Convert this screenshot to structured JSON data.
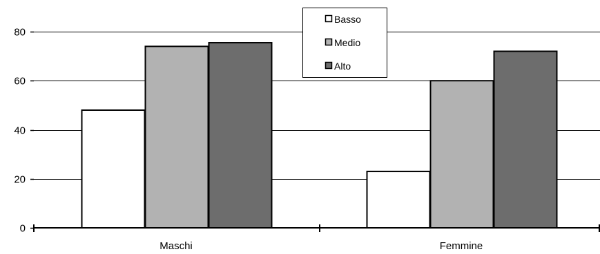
{
  "chart_data": {
    "type": "bar",
    "categories": [
      "Maschi",
      "Femmine"
    ],
    "series": [
      {
        "name": "Basso",
        "values": [
          48,
          23
        ],
        "color": "#ffffff"
      },
      {
        "name": "Medio",
        "values": [
          74,
          60
        ],
        "color": "#b2b2b2"
      },
      {
        "name": "Alto",
        "values": [
          75.5,
          72
        ],
        "color": "#6d6d6d"
      }
    ],
    "yticks": [
      0,
      20,
      40,
      60,
      80
    ],
    "ylim": [
      0,
      80
    ],
    "grid": true,
    "legend_position": "top-center",
    "title": "",
    "xlabel": "",
    "ylabel": ""
  }
}
